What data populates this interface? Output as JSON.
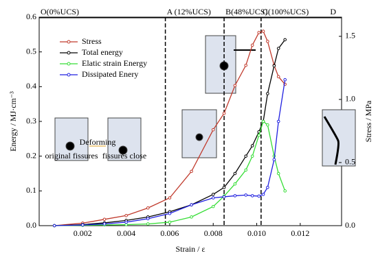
{
  "chart_data": {
    "type": "line",
    "xlabel": "Strain / ε",
    "ylabel": "Energy / MJ·cm⁻³",
    "y2label": "Stress / MPa",
    "x": [
      0.0007,
      0.002,
      0.003,
      0.004,
      0.005,
      0.006,
      0.007,
      0.008,
      0.0085,
      0.009,
      0.0095,
      0.0098,
      0.0101,
      0.0103,
      0.0105,
      0.0108,
      0.011,
      0.0113
    ],
    "series": [
      {
        "name": "Stress",
        "color": "#c0392b",
        "axis": "y2",
        "values": [
          0.0,
          0.02,
          0.05,
          0.08,
          0.14,
          0.22,
          0.43,
          0.76,
          0.89,
          1.11,
          1.27,
          1.43,
          1.53,
          1.54,
          1.46,
          1.27,
          1.18,
          1.12
        ]
      },
      {
        "name": "Total energy",
        "color": "#000000",
        "values": [
          0,
          0.003,
          0.008,
          0.015,
          0.025,
          0.04,
          0.06,
          0.09,
          0.11,
          0.15,
          0.2,
          0.23,
          0.27,
          0.3,
          0.38,
          0.46,
          0.51,
          0.535
        ]
      },
      {
        "name": "Elatic strain Energy",
        "color": "#33dd33",
        "values": [
          0,
          0.001,
          0.002,
          0.003,
          0.005,
          0.01,
          0.025,
          0.055,
          0.085,
          0.12,
          0.16,
          0.2,
          0.26,
          0.3,
          0.29,
          0.2,
          0.15,
          0.1
        ]
      },
      {
        "name": "Dissipated Enery",
        "color": "#1f1fe0",
        "values": [
          0,
          0.002,
          0.005,
          0.01,
          0.02,
          0.035,
          0.06,
          0.08,
          0.083,
          0.086,
          0.088,
          0.086,
          0.085,
          0.09,
          0.11,
          0.19,
          0.3,
          0.42
        ]
      }
    ],
    "xlim": [
      0,
      0.0139
    ],
    "xticks": [
      0.002,
      0.004,
      0.006,
      0.008,
      0.01,
      0.012
    ],
    "ylim": [
      0,
      0.6
    ],
    "yticks": [
      {
        "value": 0,
        "label": "0.0"
      },
      0.1,
      0.2,
      0.3,
      0.4,
      0.5,
      0.6
    ],
    "y2lim": [
      0,
      1.652
    ],
    "y2ticks": [
      {
        "value": 0,
        "label": "0.0"
      },
      0.5,
      {
        "value": 1,
        "label": "1.0"
      },
      1.5
    ],
    "xtick_labels": [
      {
        "value": 0.01,
        "label": "0.010"
      }
    ],
    "phase_lines": [
      0.0058,
      0.0085,
      0.0102
    ],
    "phase_labels": [
      "O(0%UCS)",
      "A (12%UCS)",
      "B(48%UCS)",
      "C(100%UCS)",
      "D"
    ],
    "legend": "upper left",
    "insets": [
      "original fissures",
      "Deforming",
      "fissures close"
    ]
  }
}
